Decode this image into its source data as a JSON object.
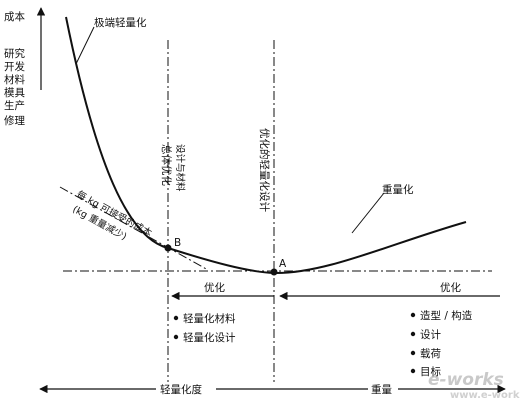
{
  "axes": {
    "y_top_label": "成本",
    "y_side_lines": [
      "研究",
      "开发",
      "材料",
      "模具",
      "生产",
      "修理"
    ],
    "x_left_label": "轻量化度",
    "x_right_label": "重量"
  },
  "curve_labels": {
    "extreme": "极端轻量化",
    "heavy": "重量化"
  },
  "vlines": {
    "total_opt_line1": "总体优化",
    "total_opt_line2": "设计与材料",
    "opt_light_design": "优化的轻量化设计"
  },
  "cost_note": {
    "line1": "每 kg 可接受的成本",
    "line2": "(kg 重量减少)"
  },
  "points": {
    "a": "A",
    "b": "B"
  },
  "optimize": {
    "left": "优化",
    "right": "优化"
  },
  "left_list": [
    "轻量化材料",
    "轻量化设计"
  ],
  "right_list": [
    "造型 / 构造",
    "设计",
    "载荷",
    "目标"
  ],
  "watermark": {
    "logo": "e-works",
    "url": "www.e-works.net.cn"
  }
}
